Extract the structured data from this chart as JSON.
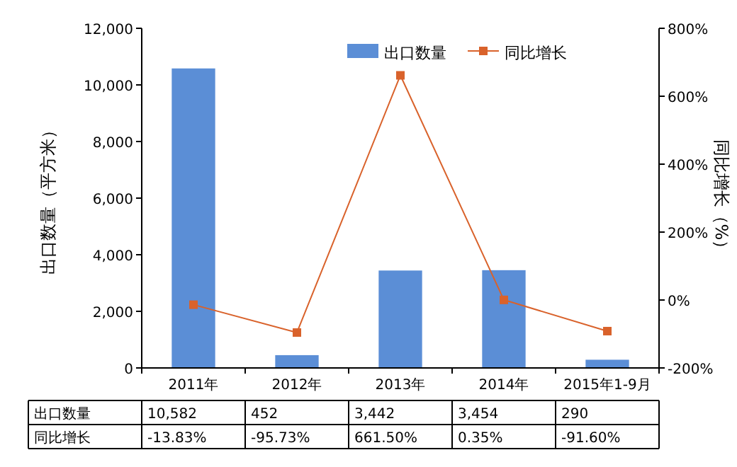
{
  "chart_data": {
    "type": "bar",
    "ylabel": "出口数量（平方米）",
    "y2label": "同比增长（%）",
    "categories": [
      "2011年",
      "2012年",
      "2013年",
      "2014年",
      "2015年1-9月"
    ],
    "series": [
      {
        "name": "出口数量",
        "color": "#5b8ed6",
        "values": [
          10582,
          452,
          3442,
          3454,
          290
        ],
        "value_labels": [
          "10,582",
          "452",
          "3,442",
          "3,454",
          "290"
        ]
      },
      {
        "name": "同比增长",
        "type": "line",
        "axis": "y2",
        "color": "#d9622b",
        "marker": "square",
        "values": [
          -13.83,
          -95.73,
          661.5,
          0.35,
          -91.6
        ],
        "value_labels": [
          "-13.83%",
          "-95.73%",
          "661.50%",
          "0.35%",
          "-91.60%"
        ]
      }
    ],
    "ylim": [
      0,
      12000
    ],
    "yticks": [
      {
        "value": 0,
        "label": "0"
      },
      {
        "value": 2000,
        "label": "2,000"
      },
      {
        "value": 4000,
        "label": "4,000"
      },
      {
        "value": 6000,
        "label": "6,000"
      },
      {
        "value": 8000,
        "label": "8,000"
      },
      {
        "value": 10000,
        "label": "10,000"
      },
      {
        "value": 12000,
        "label": "12,000"
      }
    ],
    "y2lim": [
      -200,
      800
    ],
    "y2ticks": [
      {
        "value": -200,
        "label": "-200%"
      },
      {
        "value": 0,
        "label": "0%"
      },
      {
        "value": 200,
        "label": "200%"
      },
      {
        "value": 400,
        "label": "400%"
      },
      {
        "value": 600,
        "label": "600%"
      },
      {
        "value": 800,
        "label": "800%"
      }
    ],
    "legend": "top right"
  }
}
